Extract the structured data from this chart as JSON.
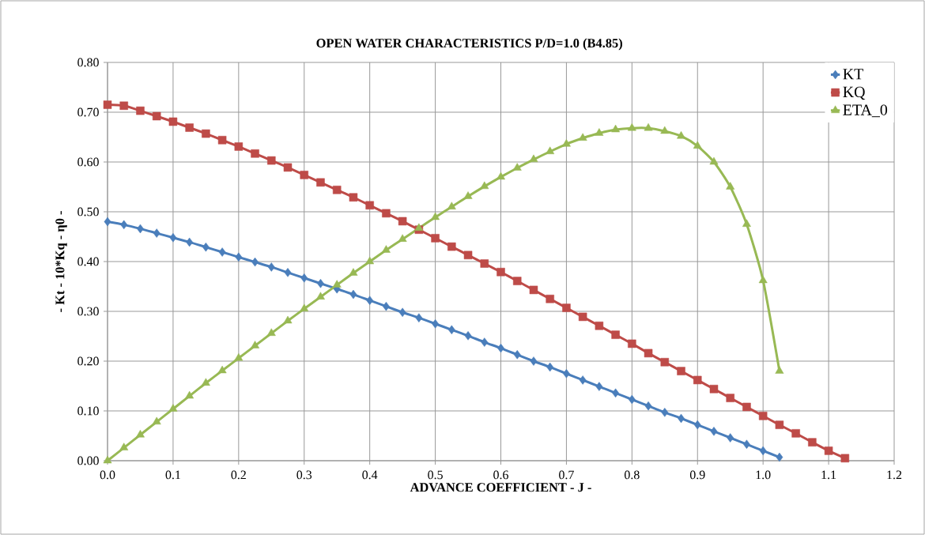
{
  "chart_data": {
    "type": "line",
    "title": "OPEN WATER CHARACTERISTICS P/D=1.0        (B4.85)",
    "xlabel": "ADVANCE COEFFICIENT - J -",
    "ylabel": "- Kt - 10*Kq - η0 -",
    "xlim": [
      0,
      1.2
    ],
    "ylim": [
      0,
      0.8
    ],
    "xticks": [
      {
        "value": 0,
        "label": "0.0"
      },
      {
        "value": 0.1,
        "label": "0.1"
      },
      {
        "value": 0.2,
        "label": "0.2"
      },
      {
        "value": 0.3,
        "label": "0.3"
      },
      {
        "value": 0.4,
        "label": "0.4"
      },
      {
        "value": 0.5,
        "label": "0.5"
      },
      {
        "value": 0.6,
        "label": "0.6"
      },
      {
        "value": 0.7,
        "label": "0.7"
      },
      {
        "value": 0.8,
        "label": "0.8"
      },
      {
        "value": 0.9,
        "label": "0.9"
      },
      {
        "value": 1.0,
        "label": "1.0"
      },
      {
        "value": 1.1,
        "label": "1.1"
      },
      {
        "value": 1.2,
        "label": "1.2"
      }
    ],
    "yticks": [
      {
        "value": 0,
        "label": "0.00"
      },
      {
        "value": 0.1,
        "label": "0.10"
      },
      {
        "value": 0.2,
        "label": "0.20"
      },
      {
        "value": 0.3,
        "label": "0.30"
      },
      {
        "value": 0.4,
        "label": "0.40"
      },
      {
        "value": 0.5,
        "label": "0.50"
      },
      {
        "value": 0.6,
        "label": "0.60"
      },
      {
        "value": 0.7,
        "label": "0.70"
      },
      {
        "value": 0.8,
        "label": "0.80"
      }
    ],
    "grid": true,
    "legend": "top right",
    "series": [
      {
        "name": "KT",
        "color": "#4a7ebb",
        "marker": "diamond",
        "x": [
          0,
          0.025,
          0.05,
          0.075,
          0.1,
          0.125,
          0.15,
          0.175,
          0.2,
          0.225,
          0.25,
          0.275,
          0.3,
          0.325,
          0.35,
          0.375,
          0.4,
          0.425,
          0.45,
          0.475,
          0.5,
          0.525,
          0.55,
          0.575,
          0.6,
          0.625,
          0.65,
          0.675,
          0.7,
          0.725,
          0.75,
          0.775,
          0.8,
          0.825,
          0.85,
          0.875,
          0.9,
          0.925,
          0.95,
          0.975,
          1.0,
          1.025
        ],
        "values": [
          0.48,
          0.474,
          0.466,
          0.457,
          0.448,
          0.439,
          0.429,
          0.419,
          0.409,
          0.399,
          0.389,
          0.378,
          0.367,
          0.356,
          0.345,
          0.334,
          0.322,
          0.31,
          0.298,
          0.287,
          0.275,
          0.263,
          0.251,
          0.238,
          0.226,
          0.213,
          0.2,
          0.188,
          0.175,
          0.162,
          0.149,
          0.136,
          0.123,
          0.11,
          0.097,
          0.085,
          0.072,
          0.059,
          0.046,
          0.033,
          0.02,
          0.007
        ]
      },
      {
        "name": "KQ",
        "color": "#be4b48",
        "marker": "square",
        "x": [
          0,
          0.025,
          0.05,
          0.075,
          0.1,
          0.125,
          0.15,
          0.175,
          0.2,
          0.225,
          0.25,
          0.275,
          0.3,
          0.325,
          0.35,
          0.375,
          0.4,
          0.425,
          0.45,
          0.475,
          0.5,
          0.525,
          0.55,
          0.575,
          0.6,
          0.625,
          0.65,
          0.675,
          0.7,
          0.725,
          0.75,
          0.775,
          0.8,
          0.825,
          0.85,
          0.875,
          0.9,
          0.925,
          0.95,
          0.975,
          1.0,
          1.025,
          1.05,
          1.075,
          1.1,
          1.125
        ],
        "values": [
          0.715,
          0.713,
          0.703,
          0.692,
          0.681,
          0.669,
          0.657,
          0.644,
          0.631,
          0.617,
          0.603,
          0.589,
          0.574,
          0.559,
          0.544,
          0.529,
          0.513,
          0.497,
          0.481,
          0.464,
          0.447,
          0.43,
          0.413,
          0.396,
          0.379,
          0.361,
          0.343,
          0.325,
          0.307,
          0.289,
          0.271,
          0.253,
          0.235,
          0.216,
          0.198,
          0.18,
          0.162,
          0.144,
          0.126,
          0.108,
          0.09,
          0.072,
          0.055,
          0.037,
          0.02,
          0.005
        ]
      },
      {
        "name": "ETA_0",
        "color": "#98b954",
        "marker": "triangle",
        "x": [
          0,
          0.025,
          0.05,
          0.075,
          0.1,
          0.125,
          0.15,
          0.175,
          0.2,
          0.225,
          0.25,
          0.275,
          0.3,
          0.325,
          0.35,
          0.375,
          0.4,
          0.425,
          0.45,
          0.475,
          0.5,
          0.525,
          0.55,
          0.575,
          0.6,
          0.625,
          0.65,
          0.675,
          0.7,
          0.725,
          0.75,
          0.775,
          0.8,
          0.825,
          0.85,
          0.875,
          0.9,
          0.925,
          0.95,
          0.975,
          1.0,
          1.025
        ],
        "values": [
          0,
          0.026,
          0.052,
          0.078,
          0.104,
          0.13,
          0.156,
          0.181,
          0.206,
          0.231,
          0.256,
          0.281,
          0.305,
          0.329,
          0.353,
          0.377,
          0.4,
          0.423,
          0.445,
          0.467,
          0.489,
          0.51,
          0.531,
          0.551,
          0.57,
          0.588,
          0.605,
          0.621,
          0.636,
          0.648,
          0.658,
          0.665,
          0.668,
          0.668,
          0.662,
          0.652,
          0.632,
          0.6,
          0.55,
          0.475,
          0.362,
          0.18
        ]
      }
    ]
  }
}
